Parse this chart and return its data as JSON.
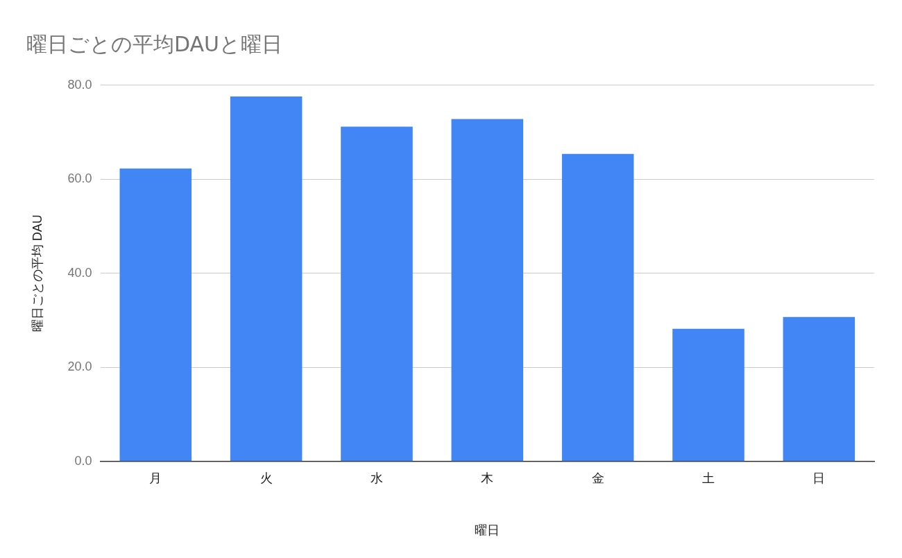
{
  "chart_data": {
    "type": "bar",
    "title": "曜日ごとの平均DAUと曜日",
    "xlabel": "曜日",
    "ylabel": "曜日ごとの平均 DAU",
    "categories": [
      "月",
      "火",
      "水",
      "木",
      "金",
      "土",
      "日"
    ],
    "values": [
      62.3,
      77.6,
      71.2,
      72.8,
      65.4,
      28.2,
      30.7
    ],
    "color": "#4285f4",
    "ylim": [
      0,
      80
    ],
    "yticks": [
      {
        "value": 0,
        "label": "0.0"
      },
      {
        "value": 20,
        "label": "20.0"
      },
      {
        "value": 40,
        "label": "40.0"
      },
      {
        "value": 60,
        "label": "60.0"
      },
      {
        "value": 80,
        "label": "80.0"
      }
    ],
    "grid": "y",
    "legend": false
  }
}
